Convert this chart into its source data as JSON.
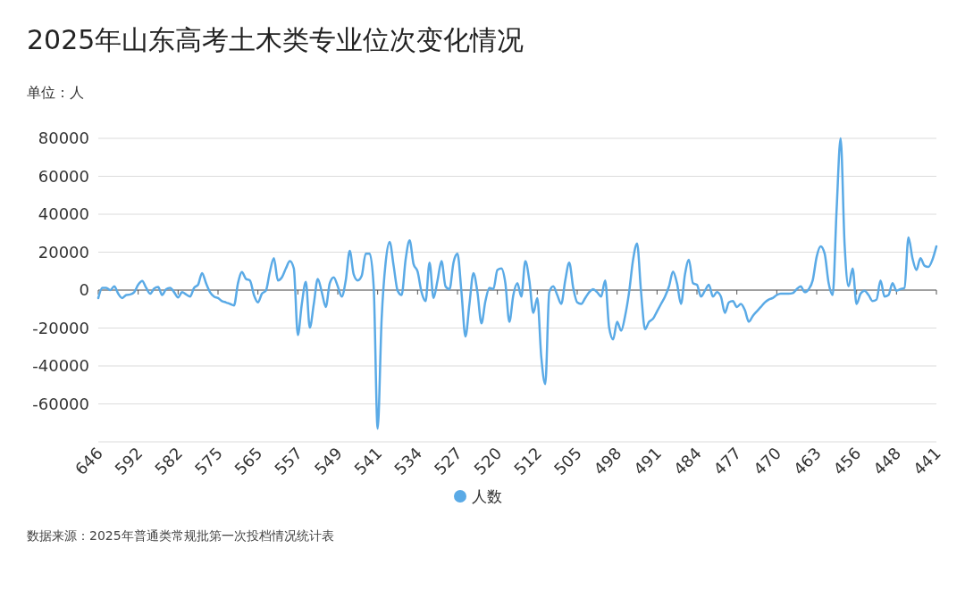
{
  "chart_data": {
    "type": "line",
    "title": "2025年山东高考土木类专业位次变化情况",
    "ylabel": "单位：人",
    "annotations": [
      "数据来源：2025年普通类常规批第一次投档情况统计表"
    ],
    "categories": [
      "646",
      null,
      null,
      null,
      null,
      null,
      null,
      null,
      null,
      null,
      "592",
      null,
      null,
      null,
      null,
      null,
      null,
      null,
      null,
      null,
      "582",
      null,
      null,
      null,
      null,
      null,
      null,
      null,
      null,
      null,
      "575",
      null,
      null,
      null,
      null,
      null,
      null,
      null,
      null,
      null,
      "565",
      null,
      null,
      null,
      null,
      null,
      null,
      null,
      null,
      null,
      "557",
      null,
      null,
      null,
      null,
      null,
      null,
      null,
      null,
      null,
      "549",
      null,
      null,
      null,
      null,
      null,
      null,
      null,
      null,
      null,
      "541",
      null,
      null,
      null,
      null,
      null,
      null,
      null,
      null,
      null,
      "534",
      null,
      null,
      null,
      null,
      null,
      null,
      null,
      null,
      null,
      "527",
      null,
      null,
      null,
      null,
      null,
      null,
      null,
      null,
      null,
      "520",
      null,
      null,
      null,
      null,
      null,
      null,
      null,
      null,
      null,
      "512",
      null,
      null,
      null,
      null,
      null,
      null,
      null,
      null,
      null,
      "505",
      null,
      null,
      null,
      null,
      null,
      null,
      null,
      null,
      null,
      "498",
      null,
      null,
      null,
      null,
      null,
      null,
      null,
      null,
      null,
      "491",
      null,
      null,
      null,
      null,
      null,
      null,
      null,
      null,
      null,
      "484",
      null,
      null,
      null,
      null,
      null,
      null,
      null,
      null,
      null,
      "477",
      null,
      null,
      null,
      null,
      null,
      null,
      null,
      null,
      null,
      "470",
      null,
      null,
      null,
      null,
      null,
      null,
      null,
      null,
      null,
      "463",
      null,
      null,
      null,
      null,
      null,
      null,
      null,
      null,
      null,
      "456",
      null,
      null,
      null,
      null,
      null,
      null,
      null,
      null,
      null,
      "448",
      null,
      null,
      null,
      null,
      null,
      null,
      null,
      null,
      null,
      "441"
    ],
    "series": [
      {
        "name": "人数",
        "color": "#5aaae6",
        "values": [
          -4200,
          1200,
          1200,
          0,
          2000,
          -1900,
          -4200,
          -2600,
          -2300,
          -1100,
          2800,
          4800,
          1200,
          -1900,
          800,
          1600,
          -2600,
          500,
          1200,
          -1100,
          -3900,
          -1100,
          -2300,
          -3400,
          1200,
          2800,
          9000,
          3600,
          -1100,
          -3400,
          -4200,
          -5800,
          -6500,
          -7300,
          -8100,
          3600,
          9500,
          5900,
          5100,
          -2600,
          -6500,
          -1900,
          -300,
          9800,
          16800,
          5100,
          6700,
          11400,
          15300,
          11400,
          -23700,
          -7300,
          4400,
          -19800,
          -7300,
          5900,
          -1100,
          -8900,
          3600,
          6700,
          2000,
          -3400,
          5100,
          20700,
          8300,
          5100,
          7500,
          19200,
          19200,
          2000,
          -73000,
          -15100,
          14500,
          25400,
          12900,
          -300,
          -2600,
          16000,
          26200,
          13700,
          9800,
          -1100,
          -5800,
          14500,
          -4200,
          5100,
          15300,
          2000,
          500,
          14500,
          19200,
          -1100,
          -24500,
          -7300,
          9000,
          -1100,
          -17500,
          -5800,
          1200,
          500,
          10600,
          11400,
          3600,
          -16700,
          -2600,
          3600,
          -3400,
          15300,
          5100,
          -12000,
          -4200,
          -35400,
          -49500,
          -1100,
          2000,
          -2600,
          -7300,
          5100,
          14500,
          1200,
          -6500,
          -7300,
          -4200,
          -1100,
          500,
          -1100,
          -3400,
          5100,
          -19800,
          -26000,
          -16700,
          -21400,
          -13600,
          -1100,
          16000,
          24600,
          -1100,
          -20600,
          -16700,
          -15100,
          -11200,
          -7300,
          -3400,
          2000,
          9800,
          3600,
          -7300,
          8300,
          16000,
          3600,
          2800,
          -3400,
          -300,
          2800,
          -3400,
          -1100,
          -3400,
          -12000,
          -6500,
          -5800,
          -8900,
          -7300,
          -10500,
          -16700,
          -13600,
          -11200,
          -8900,
          -6500,
          -5000,
          -4200,
          -2600,
          -1900,
          -1900,
          -1900,
          -1600,
          500,
          2000,
          -1100,
          500,
          5100,
          17600,
          23100,
          19200,
          3600,
          -2600,
          42600,
          80000,
          23900,
          2000,
          11400,
          -7300,
          -1900,
          -300,
          -2600,
          -5800,
          -5000,
          5100,
          -3400,
          -2600,
          3600,
          -300,
          500,
          1200,
          27800,
          16800,
          10600,
          16800,
          12900,
          12200,
          16000,
          23100
        ]
      }
    ],
    "ylim": [
      -80000,
      80000
    ],
    "yticks": [
      {
        "value": -80000,
        "label": null
      },
      -60000,
      -40000,
      -20000,
      0,
      20000,
      40000,
      60000,
      80000
    ],
    "grid": "y",
    "legend": "bottom",
    "marker": "none",
    "line_style": "solid"
  }
}
